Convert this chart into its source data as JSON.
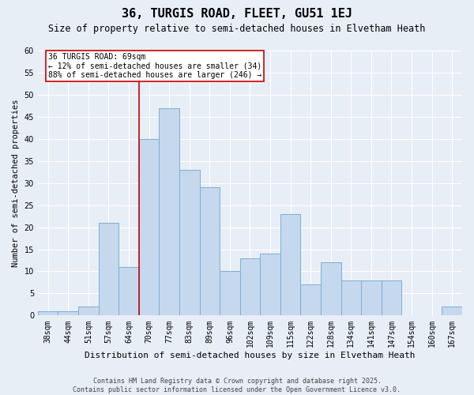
{
  "title": "36, TURGIS ROAD, FLEET, GU51 1EJ",
  "subtitle": "Size of property relative to semi-detached houses in Elvetham Heath",
  "xlabel": "Distribution of semi-detached houses by size in Elvetham Heath",
  "ylabel": "Number of semi-detached properties",
  "categories": [
    "38sqm",
    "44sqm",
    "51sqm",
    "57sqm",
    "64sqm",
    "70sqm",
    "77sqm",
    "83sqm",
    "89sqm",
    "96sqm",
    "102sqm",
    "109sqm",
    "115sqm",
    "122sqm",
    "128sqm",
    "134sqm",
    "141sqm",
    "147sqm",
    "154sqm",
    "160sqm",
    "167sqm"
  ],
  "values": [
    1,
    1,
    2,
    21,
    11,
    40,
    47,
    33,
    29,
    10,
    13,
    14,
    23,
    7,
    12,
    8,
    8,
    8,
    0,
    0,
    2
  ],
  "bar_color": "#c5d8ee",
  "bar_edge_color": "#7bafd4",
  "bg_color": "#e8eef6",
  "grid_color": "#ffffff",
  "annotation_text": "36 TURGIS ROAD: 69sqm\n← 12% of semi-detached houses are smaller (34)\n88% of semi-detached houses are larger (246) →",
  "annotation_box_color": "#ffffff",
  "annotation_box_edge": "#cc0000",
  "vline_color": "#cc0000",
  "vline_x_index": 4.5,
  "ylim": [
    0,
    60
  ],
  "yticks": [
    0,
    5,
    10,
    15,
    20,
    25,
    30,
    35,
    40,
    45,
    50,
    55,
    60
  ],
  "footer": "Contains HM Land Registry data © Crown copyright and database right 2025.\nContains public sector information licensed under the Open Government Licence v3.0.",
  "title_fontsize": 11,
  "subtitle_fontsize": 8.5,
  "ylabel_fontsize": 7.5,
  "xlabel_fontsize": 8,
  "tick_fontsize": 7,
  "annotation_fontsize": 7,
  "footer_fontsize": 6
}
